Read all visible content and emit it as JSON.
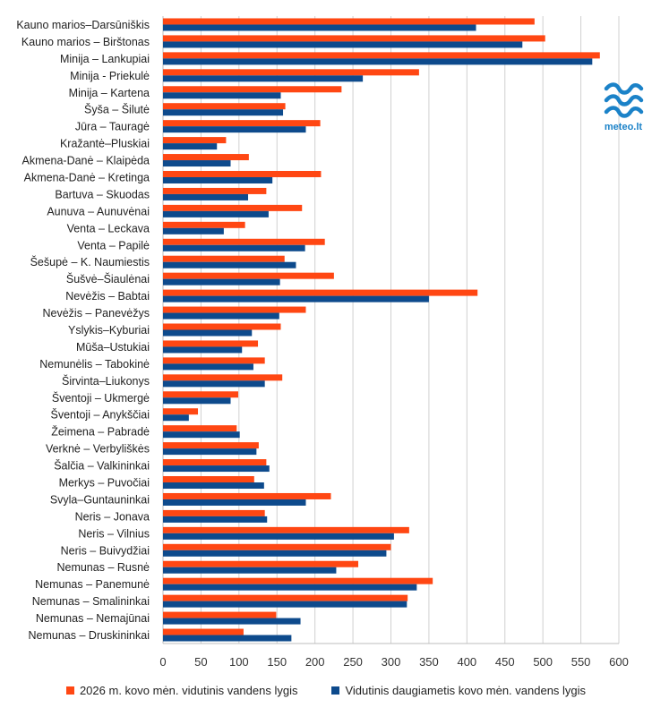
{
  "chart_data": {
    "type": "bar",
    "orientation": "horizontal",
    "categories": [
      "Kauno marios–Darsūniškis",
      "Kauno marios – Birštonas",
      "Minija – Lankupiai",
      "Minija - Priekulė",
      "Minija – Kartena",
      "Šyša – Šilutė",
      "Jūra – Tauragė",
      "Kražantė–Pluskiai",
      "Akmena-Danė – Klaipėda",
      "Akmena-Danė – Kretinga",
      "Bartuva – Skuodas",
      "Aunuva – Aunuvėnai",
      "Venta – Leckava",
      "Venta – Papilė",
      "Šešupė – K. Naumiestis",
      "Šušvė–Šiaulėnai",
      "Nevėžis – Babtai",
      "Nevėžis – Panevėžys",
      "Yslykis–Kyburiai",
      "Mūša–Ustukiai",
      "Nemunėlis – Tabokinė",
      "Širvinta–Liukonys",
      "Šventoji – Ukmergė",
      "Šventoji – Anykščiai",
      "Žeimena – Pabradė",
      "Verknė – Verbyliškės",
      "Šalčia – Valkininkai",
      "Merkys – Puvočiai",
      "Svyla–Guntauninkai",
      "Neris – Jonava",
      "Neris – Vilnius",
      "Neris – Buivydžiai",
      "Nemunas – Rusnė",
      "Nemunas – Panemunė",
      "Nemunas – Smalininkai",
      "Nemunas – Nemajūnai",
      "Nemunas – Druskininkai"
    ],
    "series": [
      {
        "name": "2026 m. kovo mėn. vidutinis vandens lygis",
        "color": "#ff4713",
        "values": [
          489,
          503,
          575,
          337,
          235,
          161,
          207,
          83,
          113,
          208,
          136,
          183,
          108,
          213,
          160,
          225,
          414,
          188,
          155,
          125,
          134,
          157,
          99,
          46,
          97,
          126,
          136,
          120,
          221,
          134,
          324,
          300,
          257,
          355,
          322,
          149,
          106
        ]
      },
      {
        "name": "Vidutinis daugiametis kovo mėn. vandens lygis",
        "color": "#0d4a8c",
        "values": [
          412,
          473,
          565,
          263,
          155,
          158,
          188,
          71,
          89,
          144,
          112,
          139,
          80,
          187,
          175,
          154,
          350,
          153,
          117,
          104,
          119,
          134,
          89,
          34,
          101,
          123,
          140,
          133,
          188,
          137,
          304,
          294,
          228,
          334,
          321,
          181,
          169
        ]
      }
    ],
    "xlim": [
      0,
      600
    ],
    "xticks": [
      "0",
      "50",
      "100",
      "150",
      "200",
      "250",
      "300",
      "350",
      "400",
      "450",
      "500",
      "550",
      "600"
    ],
    "grid": "vertical",
    "legend": "bottom"
  },
  "logo": {
    "text": "meteo.lt",
    "color": "#1b82c8"
  }
}
